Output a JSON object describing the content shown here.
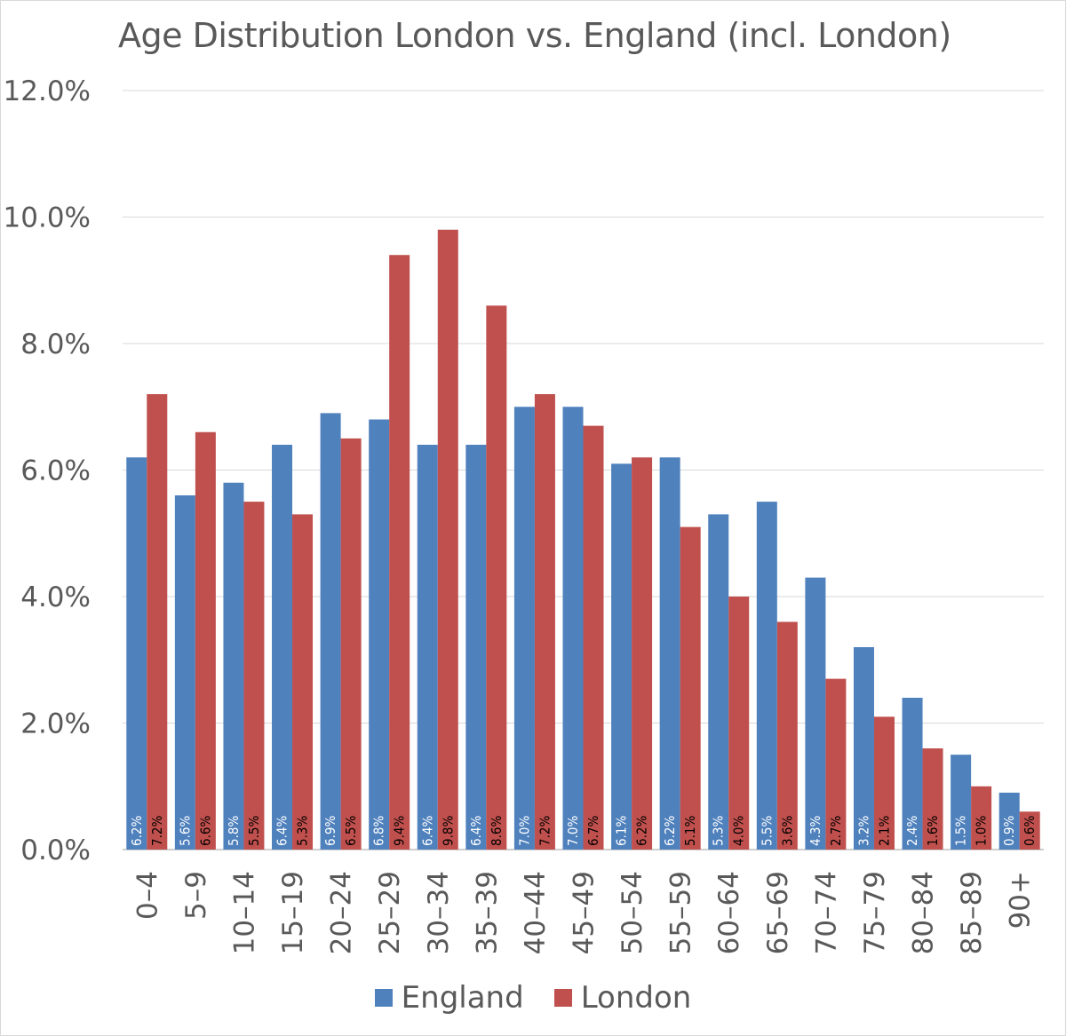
{
  "chart_data": {
    "type": "bar",
    "title": "Age Distribution London vs. England (incl. London)",
    "xlabel": "",
    "ylabel": "",
    "ylim": [
      0,
      12
    ],
    "y_ticks": [
      "0.0%",
      "2.0%",
      "4.0%",
      "6.0%",
      "8.0%",
      "10.0%",
      "12.0%"
    ],
    "y_tick_values": [
      0,
      2,
      4,
      6,
      8,
      10,
      12
    ],
    "grid": true,
    "legend_position": "bottom",
    "categories": [
      "0–4",
      "5–9",
      "10–14",
      "15–19",
      "20–24",
      "25–29",
      "30–34",
      "35–39",
      "40–44",
      "45–49",
      "50–54",
      "55–59",
      "60–64",
      "65–69",
      "70–74",
      "75–79",
      "80–84",
      "85–89",
      "90+"
    ],
    "series": [
      {
        "name": "England",
        "color": "#4f81bd",
        "label_color": "#ffffff",
        "values": [
          6.2,
          5.6,
          5.8,
          6.4,
          6.9,
          6.8,
          6.4,
          6.4,
          7.0,
          7.0,
          6.1,
          6.2,
          5.3,
          5.5,
          4.3,
          3.2,
          2.4,
          1.5,
          0.9
        ],
        "labels": [
          "6.2%",
          "5.6%",
          "5.8%",
          "6.4%",
          "6.9%",
          "6.8%",
          "6.4%",
          "6.4%",
          "7.0%",
          "7.0%",
          "6.1%",
          "6.2%",
          "5.3%",
          "5.5%",
          "4.3%",
          "3.2%",
          "2.4%",
          "1.5%",
          "0.9%"
        ]
      },
      {
        "name": "London",
        "color": "#c0504d",
        "label_color": "#000000",
        "values": [
          7.2,
          6.6,
          5.5,
          5.3,
          6.5,
          9.4,
          9.8,
          8.6,
          7.2,
          6.7,
          6.2,
          5.1,
          4.0,
          3.6,
          2.7,
          2.1,
          1.6,
          1.0,
          0.6
        ],
        "labels": [
          "7.2%",
          "6.6%",
          "5.5%",
          "5.3%",
          "6.5%",
          "9.4%",
          "9.8%",
          "8.6%",
          "7.2%",
          "6.7%",
          "6.2%",
          "5.1%",
          "4.0%",
          "3.6%",
          "2.7%",
          "2.1%",
          "1.6%",
          "1.0%",
          "0.6%"
        ]
      }
    ]
  }
}
